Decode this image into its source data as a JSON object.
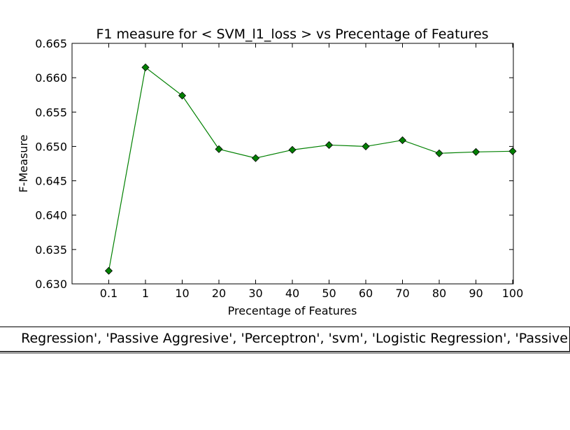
{
  "chart_data": {
    "type": "line",
    "title": "F1 measure for < SVM_l1_loss > vs Precentage of Features",
    "xlabel": "Precentage of Features",
    "ylabel": "F-Measure",
    "categories": [
      "0.1",
      "1",
      "10",
      "20",
      "30",
      "40",
      "50",
      "60",
      "70",
      "80",
      "90",
      "100"
    ],
    "series": [
      {
        "values": [
          0.6319,
          0.6615,
          0.6574,
          0.6496,
          0.6483,
          0.6495,
          0.6502,
          0.65,
          0.6509,
          0.649,
          0.6492,
          0.6493
        ],
        "color": "#008000",
        "marker": "diamond"
      }
    ],
    "ylim": [
      0.63,
      0.665
    ],
    "yticks": [
      "0.630",
      "0.635",
      "0.640",
      "0.645",
      "0.650",
      "0.655",
      "0.660",
      "0.665"
    ],
    "grid": false,
    "legend_text": "Regression', 'Passive Aggresive', 'Perceptron', 'svm', 'Logistic Regression', 'Passive"
  }
}
